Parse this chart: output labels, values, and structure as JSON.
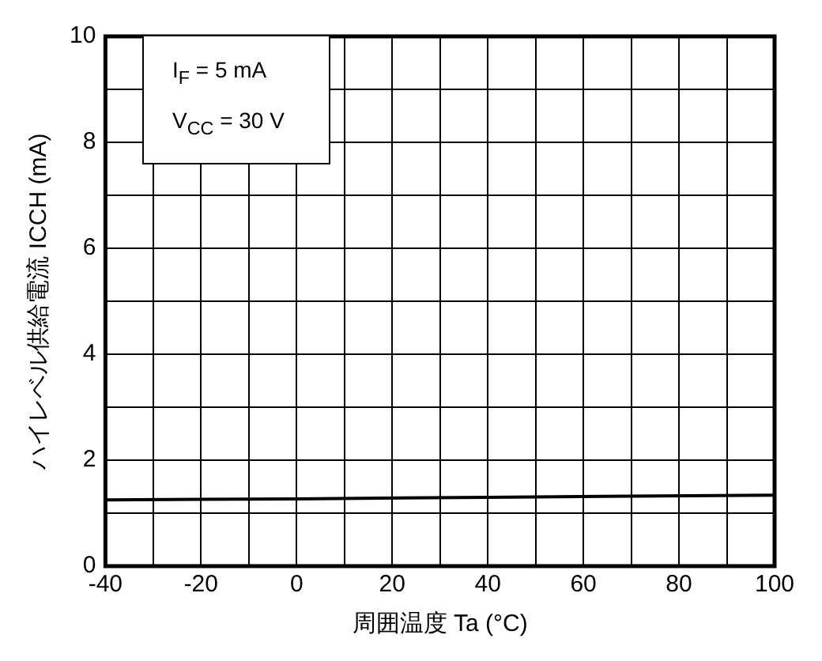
{
  "chart_data": {
    "type": "line",
    "xlabel": "周囲温度 Ta (°C)",
    "ylabel": "ハイレベル供給電流 ICCH (mA)",
    "annotations": [
      "I$_{F}$ = 5 mA",
      "V$_{CC}$ = 30 V"
    ],
    "x": [
      -40,
      0,
      40,
      100
    ],
    "series": [
      {
        "color": "#000000",
        "values": [
          1.25,
          1.27,
          1.3,
          1.34
        ]
      }
    ],
    "xlim": [
      -40,
      100
    ],
    "ylim": [
      0,
      10
    ],
    "xticks": [
      -40,
      {
        "value": -30,
        "label": null
      },
      -20,
      {
        "value": -10,
        "label": null
      },
      0,
      {
        "value": 10,
        "label": null
      },
      20,
      {
        "value": 30,
        "label": null
      },
      40,
      {
        "value": 50,
        "label": null
      },
      60,
      {
        "value": 70,
        "label": null
      },
      80,
      {
        "value": 90,
        "label": null
      },
      100
    ],
    "yticks": [
      0,
      {
        "value": 1,
        "label": null
      },
      2,
      {
        "value": 3,
        "label": null
      },
      4,
      {
        "value": 5,
        "label": null
      },
      6,
      {
        "value": 7,
        "label": null
      },
      8,
      {
        "value": 9,
        "label": null
      },
      10
    ],
    "grid": true,
    "legend": false,
    "marker": "none",
    "line_style": "solid"
  }
}
